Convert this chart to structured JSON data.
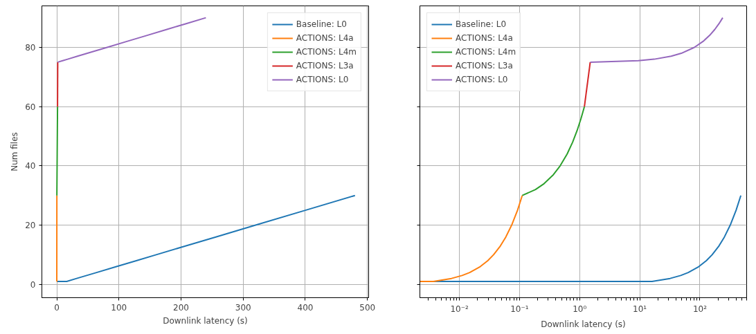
{
  "chart_data": [
    {
      "type": "line",
      "xlabel": "Downlink latency (s)",
      "ylabel": "Num files",
      "xlim": [
        -24,
        502
      ],
      "ylim": [
        -4.5,
        94
      ],
      "xticks": [
        0,
        100,
        200,
        300,
        400,
        500
      ],
      "yticks": [
        0,
        20,
        40,
        60,
        80
      ],
      "grid": true,
      "legend": "top right",
      "series": [
        {
          "name": "Baseline: L0",
          "color": "#1f77b4",
          "x": [
            0.0022,
            16,
            32,
            48,
            64,
            96,
            128,
            160,
            208,
            256,
            320,
            400,
            480
          ],
          "values": [
            1,
            1,
            2,
            3,
            4,
            6,
            8,
            10,
            13,
            16,
            20,
            25,
            30
          ]
        },
        {
          "name": "ACTIONS: L4a",
          "color": "#ff7f0e",
          "x": [
            0.0022,
            0.0037,
            0.0074,
            0.0111,
            0.0148,
            0.0222,
            0.0296,
            0.037,
            0.0481,
            0.0592,
            0.074,
            0.0925,
            0.111
          ],
          "values": [
            1,
            1,
            2,
            3,
            4,
            6,
            8,
            10,
            13,
            16,
            20,
            25,
            30
          ]
        },
        {
          "name": "ACTIONS: L4m",
          "color": "#2ca02c",
          "x": [
            0.111,
            0.184,
            0.256,
            0.365,
            0.474,
            0.619,
            0.764,
            0.91,
            1.055,
            1.2
          ],
          "values": [
            30,
            32,
            34,
            37,
            40,
            44,
            48,
            52,
            56,
            60
          ]
        },
        {
          "name": "ACTIONS: L3a",
          "color": "#d62728",
          "x": [
            1.2,
            1.5
          ],
          "values": [
            60,
            75
          ]
        },
        {
          "name": "ACTIONS: L0",
          "color": "#9467bd",
          "x": [
            1.5,
            9.45,
            17.4,
            33.3,
            49.2,
            81,
            112.8,
            144.6,
            176.4,
            208.2,
            240
          ],
          "values": [
            75,
            75.5,
            76,
            77,
            78,
            80,
            82,
            84,
            86,
            88,
            90
          ]
        }
      ]
    },
    {
      "type": "line",
      "xlabel": "Downlink latency (s)",
      "log": "x",
      "tick_labels": "x",
      "xlim": [
        0.0022,
        600
      ],
      "ylim": [
        -4.5,
        94
      ],
      "xticks": [
        {
          "value": 0.01,
          "label": "10⁻²"
        },
        {
          "value": 0.1,
          "label": "10⁻¹"
        },
        {
          "value": 1,
          "label": "10⁰"
        },
        {
          "value": 10,
          "label": "10¹"
        },
        {
          "value": 100,
          "label": "10²"
        }
      ],
      "yticks": [
        0,
        20,
        40,
        60,
        80
      ],
      "grid": true,
      "legend": "top left",
      "series": [
        {
          "name": "Baseline: L0",
          "color": "#1f77b4",
          "x": [
            0.0022,
            16,
            32,
            48,
            64,
            96,
            128,
            160,
            208,
            256,
            320,
            400,
            480
          ],
          "values": [
            1,
            1,
            2,
            3,
            4,
            6,
            8,
            10,
            13,
            16,
            20,
            25,
            30
          ]
        },
        {
          "name": "ACTIONS: L4a",
          "color": "#ff7f0e",
          "x": [
            0.0022,
            0.0037,
            0.0074,
            0.0111,
            0.0148,
            0.0222,
            0.0296,
            0.037,
            0.0481,
            0.0592,
            0.074,
            0.0925,
            0.111
          ],
          "values": [
            1,
            1,
            2,
            3,
            4,
            6,
            8,
            10,
            13,
            16,
            20,
            25,
            30
          ]
        },
        {
          "name": "ACTIONS: L4m",
          "color": "#2ca02c",
          "x": [
            0.111,
            0.184,
            0.256,
            0.365,
            0.474,
            0.619,
            0.764,
            0.91,
            1.055,
            1.2
          ],
          "values": [
            30,
            32,
            34,
            37,
            40,
            44,
            48,
            52,
            56,
            60
          ]
        },
        {
          "name": "ACTIONS: L3a",
          "color": "#d62728",
          "x": [
            1.2,
            1.5
          ],
          "values": [
            60,
            75
          ]
        },
        {
          "name": "ACTIONS: L0",
          "color": "#9467bd",
          "x": [
            1.5,
            9.45,
            17.4,
            33.3,
            49.2,
            81,
            112.8,
            144.6,
            176.4,
            208.2,
            240
          ],
          "values": [
            75,
            75.5,
            76,
            77,
            78,
            80,
            82,
            84,
            86,
            88,
            90
          ]
        }
      ]
    }
  ]
}
